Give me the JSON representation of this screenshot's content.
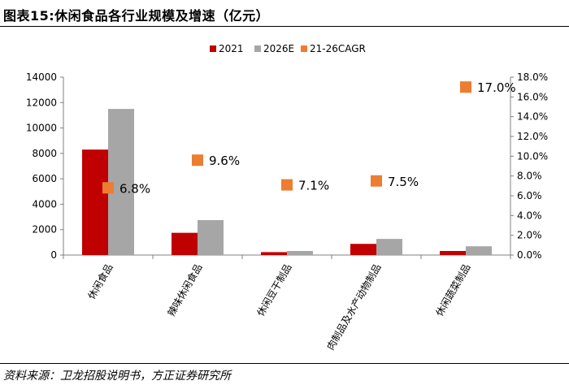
{
  "title": "图表15:休闲食品各行业规模及增速（亿元）",
  "source": "资料来源：卫龙招股说明书，方正证券研究所",
  "chart_data": {
    "type": "bar",
    "categories": [
      "休闲食品",
      "辣味休闲食品",
      "休闲豆干制品",
      "肉制品及水产动物制品",
      "休闲蔬菜制品"
    ],
    "series": [
      {
        "name": "2021",
        "type": "bar",
        "axis": "left",
        "color": "#C00000",
        "values": [
          8300,
          1750,
          230,
          880,
          320
        ]
      },
      {
        "name": "2026E",
        "type": "bar",
        "axis": "left",
        "color": "#A6A6A6",
        "values": [
          11500,
          2750,
          320,
          1270,
          690
        ]
      },
      {
        "name": "21-26CAGR",
        "type": "scatter",
        "axis": "right",
        "color": "#ED7D31",
        "values": [
          6.8,
          9.6,
          7.1,
          7.5,
          17.0
        ],
        "labels": [
          "6.8%",
          "9.6%",
          "7.1%",
          "7.5%",
          "17.0%"
        ]
      }
    ],
    "y_left": {
      "min": 0,
      "max": 14000,
      "ticks": [
        "0",
        "2000",
        "4000",
        "6000",
        "8000",
        "10000",
        "12000",
        "14000"
      ]
    },
    "y_right": {
      "min": 0,
      "max": 18,
      "ticks": [
        "0.0%",
        "2.0%",
        "4.0%",
        "6.0%",
        "8.0%",
        "10.0%",
        "12.0%",
        "14.0%",
        "16.0%",
        "18.0%"
      ]
    },
    "legend_position": "top-center",
    "grid": false
  }
}
